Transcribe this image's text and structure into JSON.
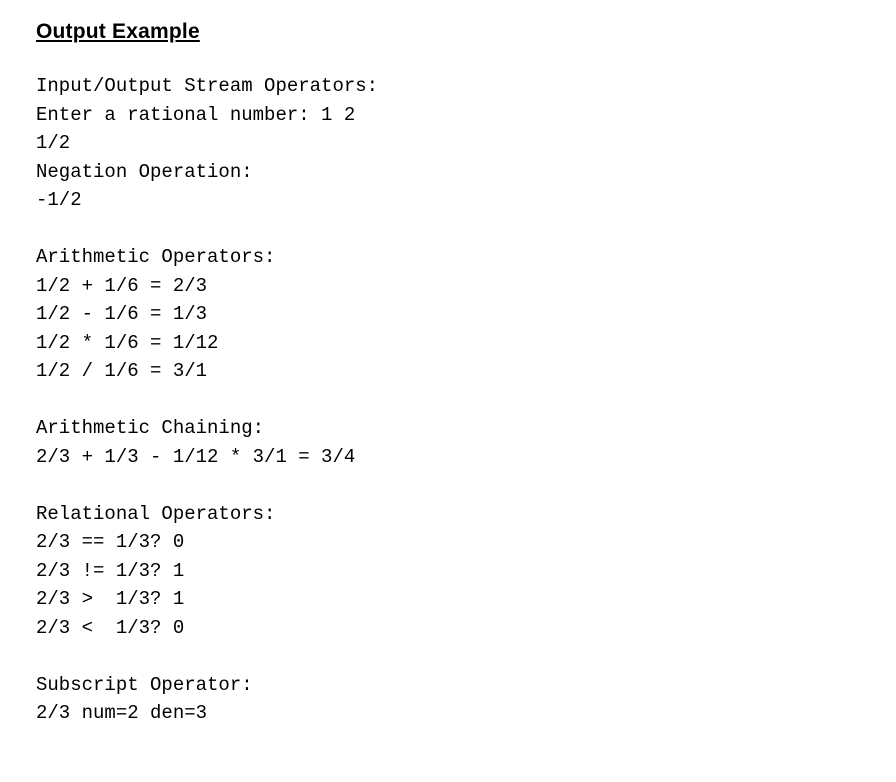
{
  "heading": "Output Example",
  "code": {
    "section1_title": "Input/Output Stream Operators:",
    "section1_line1": "Enter a rational number: 1 2",
    "section1_line2": "1/2",
    "section2_title": "Negation Operation:",
    "section2_line1": "-1/2",
    "section3_title": "Arithmetic Operators:",
    "section3_line1": "1/2 + 1/6 = 2/3",
    "section3_line2": "1/2 - 1/6 = 1/3",
    "section3_line3": "1/2 * 1/6 = 1/12",
    "section3_line4": "1/2 / 1/6 = 3/1",
    "section4_title": "Arithmetic Chaining:",
    "section4_line1": "2/3 + 1/3 - 1/12 * 3/1 = 3/4",
    "section5_title": "Relational Operators:",
    "section5_line1": "2/3 == 1/3? 0",
    "section5_line2": "2/3 != 1/3? 1",
    "section5_line3": "2/3 >  1/3? 1",
    "section5_line4": "2/3 <  1/3? 0",
    "section6_title": "Subscript Operator:",
    "section6_line1": "2/3 num=2 den=3"
  },
  "style": {
    "heading_fontsize": 21,
    "heading_weight": "bold",
    "heading_decoration": "underline",
    "heading_color": "#000000",
    "code_fontsize": 19,
    "code_fontfamily": "SF Mono, Menlo, Monaco, Consolas, Courier New, monospace",
    "code_color": "#000000",
    "code_lineheight": 1.5,
    "background_color": "#ffffff",
    "blank_line_count_between_groups": 1
  }
}
